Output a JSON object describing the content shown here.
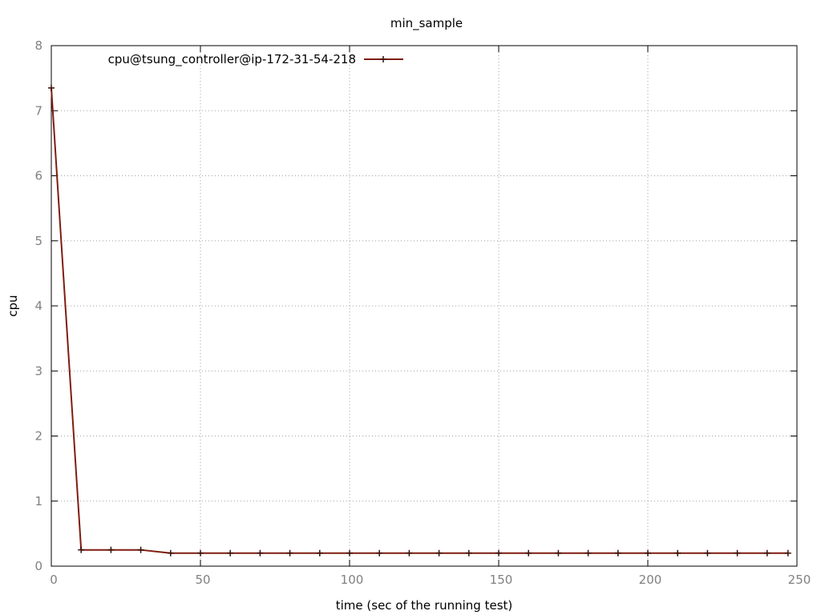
{
  "chart_data": {
    "type": "line",
    "title": "min_sample",
    "xlabel": "time (sec of the running test)",
    "ylabel": "cpu",
    "xlim": [
      0,
      250
    ],
    "ylim": [
      0,
      8
    ],
    "xticks": [
      0,
      50,
      100,
      150,
      200,
      250
    ],
    "yticks": [
      0,
      1,
      2,
      3,
      4,
      5,
      6,
      7,
      8
    ],
    "grid": true,
    "legend_position": "top-left",
    "series": [
      {
        "name": "cpu@tsung_controller@ip-172-31-54-218",
        "color": "#7f1d10",
        "marker": "plus",
        "x": [
          0,
          10,
          20,
          30,
          40,
          50,
          60,
          70,
          80,
          90,
          100,
          110,
          120,
          130,
          140,
          150,
          160,
          170,
          180,
          190,
          200,
          210,
          220,
          230,
          240,
          247
        ],
        "y": [
          7.35,
          0.25,
          0.25,
          0.25,
          0.2,
          0.2,
          0.2,
          0.2,
          0.2,
          0.2,
          0.2,
          0.2,
          0.2,
          0.2,
          0.2,
          0.2,
          0.2,
          0.2,
          0.2,
          0.2,
          0.2,
          0.2,
          0.2,
          0.2,
          0.2,
          0.2
        ]
      }
    ]
  }
}
